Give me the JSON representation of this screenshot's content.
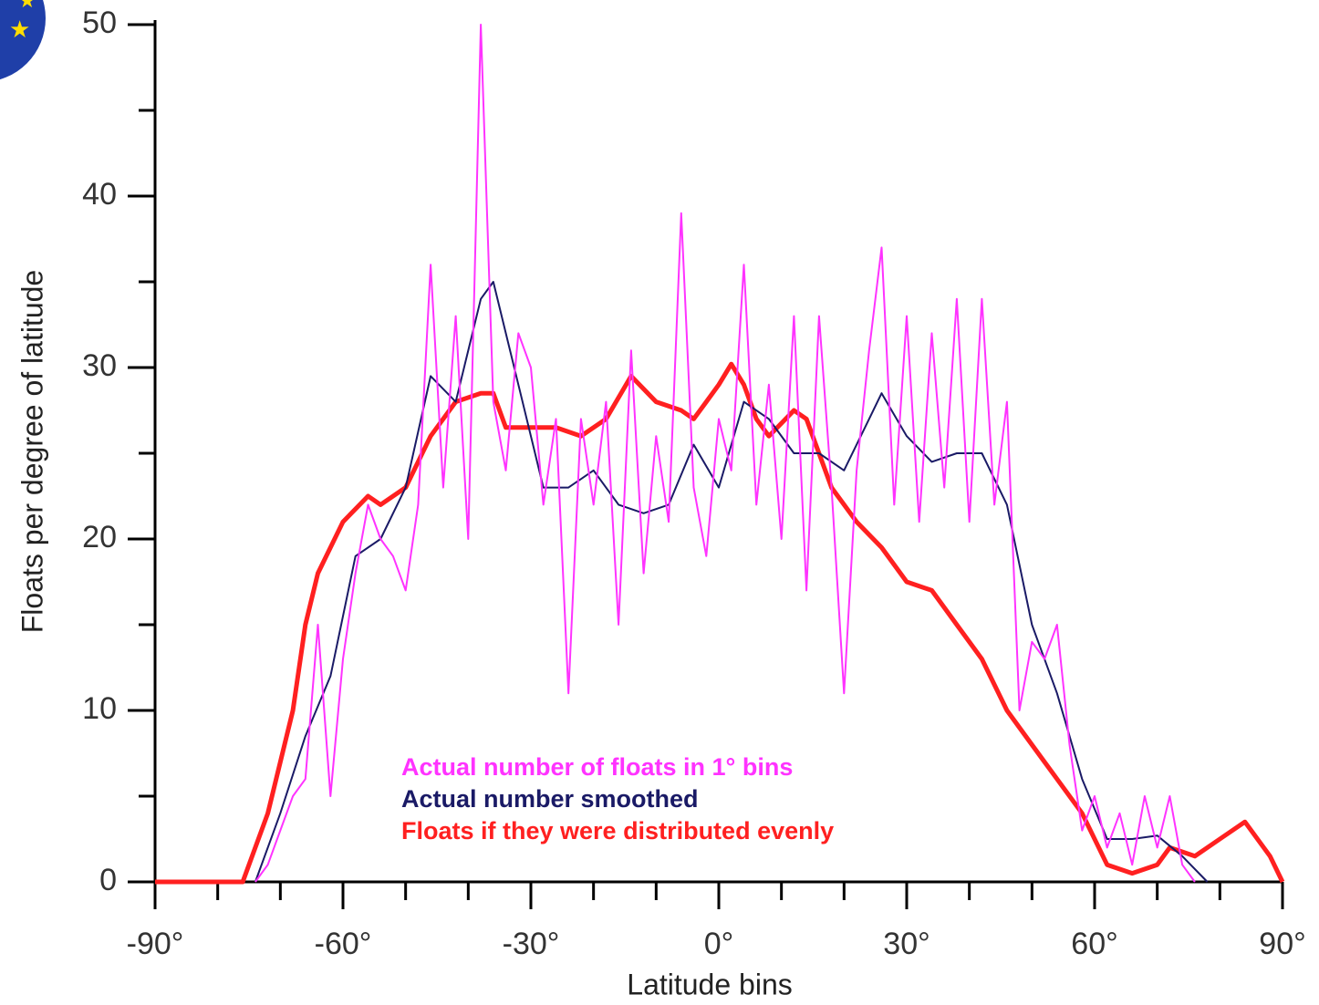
{
  "chart_data": {
    "type": "line",
    "xlabel": "Latitude bins",
    "ylabel": "Floats per degree of latitude",
    "xlim": [
      -90,
      90
    ],
    "ylim": [
      0,
      50
    ],
    "xticks": [
      {
        "value": -90,
        "label": "-90°"
      },
      {
        "value": -60,
        "label": "-60°"
      },
      {
        "value": -30,
        "label": "-30°"
      },
      {
        "value": 0,
        "label": "0°"
      },
      {
        "value": 30,
        "label": "30°"
      },
      {
        "value": 60,
        "label": "60°"
      },
      {
        "value": 90,
        "label": "90°"
      }
    ],
    "xminorticks": [
      -80,
      -70,
      -50,
      -40,
      -20,
      -10,
      10,
      20,
      40,
      50,
      70,
      80
    ],
    "yticks": [
      0,
      10,
      20,
      30,
      40,
      50
    ],
    "yminorticks": [
      5,
      15,
      25,
      35,
      45
    ],
    "series": [
      {
        "name": "Actual number of floats in 1° bins",
        "color": "#ff33ff",
        "width": 2,
        "x": [
          -74,
          -72,
          -70,
          -68,
          -66,
          -64,
          -62,
          -60,
          -58,
          -56,
          -54,
          -52,
          -50,
          -48,
          -46,
          -44,
          -42,
          -40,
          -38,
          -36,
          -34,
          -32,
          -30,
          -28,
          -26,
          -24,
          -22,
          -20,
          -18,
          -16,
          -14,
          -12,
          -10,
          -8,
          -6,
          -4,
          -2,
          0,
          2,
          4,
          6,
          8,
          10,
          12,
          14,
          16,
          18,
          20,
          22,
          24,
          26,
          28,
          30,
          32,
          34,
          36,
          38,
          40,
          42,
          44,
          46,
          48,
          50,
          52,
          54,
          56,
          58,
          60,
          62,
          64,
          66,
          68,
          70,
          72,
          74,
          76
        ],
        "values": [
          0,
          1,
          3,
          5,
          6,
          15,
          5,
          13,
          18,
          22,
          20,
          19,
          17,
          22,
          36,
          23,
          33,
          20,
          50,
          28,
          24,
          32,
          30,
          22,
          27,
          11,
          27,
          22,
          28,
          15,
          31,
          18,
          26,
          21,
          39,
          23,
          19,
          27,
          24,
          36,
          22,
          29,
          20,
          33,
          17,
          33,
          23,
          11,
          24,
          31,
          37,
          22,
          33,
          21,
          32,
          23,
          34,
          21,
          34,
          22,
          28,
          10,
          14,
          13,
          15,
          8,
          3,
          5,
          2,
          4,
          1,
          5,
          2,
          5,
          1,
          0
        ]
      },
      {
        "name": "Actual number smoothed",
        "color": "#1a1a66",
        "width": 2,
        "x": [
          -74,
          -70,
          -66,
          -62,
          -58,
          -54,
          -50,
          -46,
          -42,
          -38,
          -36,
          -32,
          -28,
          -24,
          -20,
          -16,
          -12,
          -8,
          -4,
          0,
          4,
          8,
          12,
          16,
          20,
          24,
          26,
          30,
          34,
          38,
          42,
          46,
          50,
          54,
          58,
          62,
          66,
          70,
          74,
          78
        ],
        "values": [
          0,
          4,
          8.5,
          12,
          19,
          20,
          23,
          29.5,
          28,
          34,
          35,
          29,
          23,
          23,
          24,
          22,
          21.5,
          22,
          25.5,
          23,
          28,
          27,
          25,
          25,
          24,
          27,
          28.5,
          26,
          24.5,
          25,
          25,
          22,
          15,
          11,
          6,
          2.5,
          2.5,
          2.7,
          1.5,
          0
        ]
      },
      {
        "name": "Floats if they were distributed evenly",
        "color": "#ff2020",
        "width": 5,
        "x": [
          -90,
          -76,
          -72,
          -68,
          -66,
          -64,
          -60,
          -56,
          -54,
          -50,
          -46,
          -42,
          -38,
          -36,
          -34,
          -30,
          -26,
          -22,
          -18,
          -14,
          -10,
          -6,
          -4,
          -2,
          0,
          2,
          4,
          6,
          8,
          12,
          14,
          18,
          22,
          26,
          30,
          34,
          38,
          42,
          46,
          50,
          54,
          58,
          62,
          66,
          70,
          72,
          76,
          80,
          84,
          88,
          90
        ],
        "values": [
          0,
          0,
          4,
          10,
          15,
          18,
          21,
          22.5,
          22,
          23,
          26,
          28,
          28.5,
          28.5,
          26.5,
          26.5,
          26.5,
          26,
          27,
          29.5,
          28,
          27.5,
          27,
          28,
          29,
          30.2,
          29,
          27,
          26,
          27.5,
          27,
          23,
          21,
          19.5,
          17.5,
          17,
          15,
          13,
          10,
          8,
          6,
          4,
          1,
          0.5,
          1,
          2,
          1.5,
          2.5,
          3.5,
          1.5,
          0
        ]
      }
    ]
  }
}
